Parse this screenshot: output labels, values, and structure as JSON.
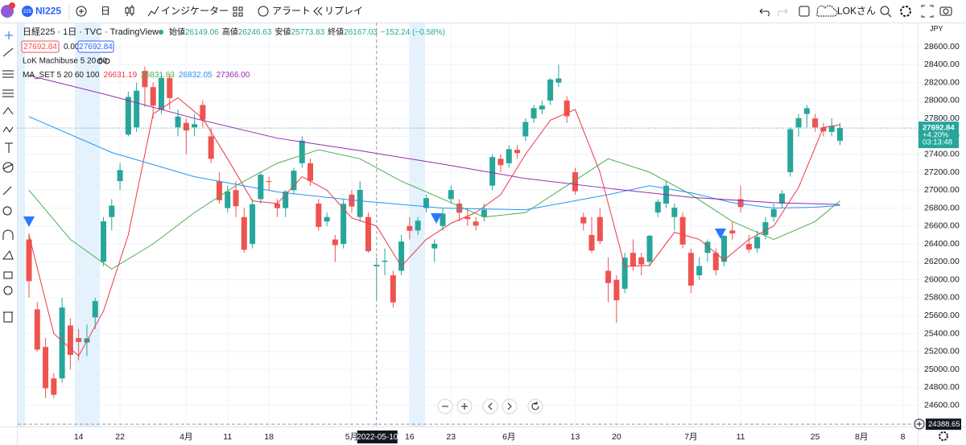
{
  "toolbar": {
    "symbol": "NI225",
    "logo_badge": "225",
    "interval": "日",
    "indicators": "インジケーター",
    "alert": "アラート",
    "replay": "リプレイ",
    "user": "LOKさん"
  },
  "legend": {
    "title": "日経225 · 1日 · TVC · TradingView",
    "open_label": "始値",
    "open": "26149.06",
    "high_label": "高値",
    "high": "26246.63",
    "low_label": "安値",
    "low": "25773.83",
    "close_label": "終値",
    "close": "26167.03",
    "change": "−152.24 (−0.58%)",
    "tag1": "27692.84",
    "tag2": "0.00",
    "tag3": "27692.84",
    "lok": "LoK Machibuse 5 20 60",
    "ma_set": "MA_SET 5 20 60 100",
    "ma_values": [
      "26631.19",
      "26831.63",
      "26832.05",
      "27366.00"
    ]
  },
  "chart_data": {
    "type": "candlestick",
    "currency": "JPY",
    "up_color": "#26a69a",
    "down_color": "#ef5350",
    "ylim": [
      24390,
      28870
    ],
    "yticks": [
      {
        "value": 24600,
        "label": "24600.00"
      },
      {
        "value": 24800,
        "label": "24800.00"
      },
      {
        "value": 25000,
        "label": "25000.00"
      },
      {
        "value": 25200,
        "label": "25200.00"
      },
      {
        "value": 25400,
        "label": "25400.00"
      },
      {
        "value": 25600,
        "label": "25600.00"
      },
      {
        "value": 25800,
        "label": "25800.00"
      },
      {
        "value": 26000,
        "label": "26000.00"
      },
      {
        "value": 26200,
        "label": "26200.00"
      },
      {
        "value": 26400,
        "label": "26400.00"
      },
      {
        "value": 26600,
        "label": "26600.00"
      },
      {
        "value": 26800,
        "label": "26800.00"
      },
      {
        "value": 27000,
        "label": "27000.00"
      },
      {
        "value": 27200,
        "label": "27200.00"
      },
      {
        "value": 27400,
        "label": "27400.00"
      },
      {
        "value": 27600,
        "label": "27600.00"
      },
      {
        "value": 27800,
        "label": "27800.00"
      },
      {
        "value": 28000,
        "label": "28000.00"
      },
      {
        "value": 28200,
        "label": "28200.00"
      },
      {
        "value": 28400,
        "label": "28400.00"
      },
      {
        "value": 28600,
        "label": "28600.00"
      }
    ],
    "xticks": [
      {
        "value": 6,
        "label": "14"
      },
      {
        "value": 11,
        "label": "22"
      },
      {
        "value": 19,
        "label": "4月"
      },
      {
        "value": 24,
        "label": "11"
      },
      {
        "value": 29,
        "label": "18"
      },
      {
        "value": 39,
        "label": "5月"
      },
      {
        "value": 46,
        "label": "16"
      },
      {
        "value": 51,
        "label": "23"
      },
      {
        "value": 58,
        "label": "6月"
      },
      {
        "value": 66,
        "label": "13"
      },
      {
        "value": 71,
        "label": "20"
      },
      {
        "value": 80,
        "label": "7月"
      },
      {
        "value": 86,
        "label": "11"
      },
      {
        "value": 95,
        "label": "25"
      },
      {
        "value": 100.6,
        "label": "8月"
      },
      {
        "value": 105.6,
        "label": "8"
      }
    ],
    "candles": [
      [
        26450,
        26520,
        25800,
        25985
      ],
      [
        25670,
        25750,
        25200,
        25221
      ],
      [
        25250,
        25350,
        24680,
        24790
      ],
      [
        24900,
        24960,
        24680,
        24717
      ],
      [
        24900,
        25800,
        24850,
        25690
      ],
      [
        25490,
        25570,
        25000,
        25162
      ],
      [
        25350,
        25450,
        25100,
        25307
      ],
      [
        25300,
        25500,
        25150,
        25346
      ],
      [
        25580,
        25800,
        25450,
        25762
      ],
      [
        26200,
        26700,
        26150,
        26652
      ],
      [
        26700,
        26900,
        26550,
        26827
      ],
      [
        27100,
        27300,
        27000,
        27224
      ],
      [
        27620,
        28100,
        27600,
        28040
      ],
      [
        27700,
        28200,
        27650,
        28110
      ],
      [
        28330,
        28380,
        27930,
        28149
      ],
      [
        28150,
        28200,
        27800,
        27943
      ],
      [
        27900,
        28300,
        27850,
        28252
      ],
      [
        28250,
        28300,
        27900,
        28027
      ],
      [
        27700,
        27900,
        27600,
        27821
      ],
      [
        27750,
        27800,
        27400,
        27665
      ],
      [
        27700,
        27850,
        27600,
        27736
      ],
      [
        27950,
        28000,
        27700,
        27787
      ],
      [
        27600,
        27700,
        27300,
        27350
      ],
      [
        27100,
        27200,
        26850,
        26888
      ],
      [
        26800,
        27050,
        26750,
        26985
      ],
      [
        27000,
        27100,
        26700,
        26821
      ],
      [
        26700,
        26800,
        26300,
        26334
      ],
      [
        26400,
        26900,
        26350,
        26843
      ],
      [
        26900,
        27200,
        26850,
        27172
      ],
      [
        27100,
        27150,
        27000,
        27093
      ],
      [
        26850,
        26900,
        26700,
        26799
      ],
      [
        26800,
        27000,
        26700,
        26985
      ],
      [
        27000,
        27250,
        26950,
        27217
      ],
      [
        27300,
        27600,
        27250,
        27553
      ],
      [
        27300,
        27350,
        27050,
        27105
      ],
      [
        26850,
        26900,
        26550,
        26590
      ],
      [
        26650,
        26750,
        26600,
        26700
      ],
      [
        26450,
        26500,
        26200,
        26386
      ],
      [
        26400,
        26900,
        26350,
        26847
      ],
      [
        26950,
        27000,
        26750,
        26818
      ],
      [
        26700,
        27100,
        26650,
        27003
      ],
      [
        26700,
        26750,
        26300,
        26319
      ],
      [
        26149.06,
        26246.63,
        25773.83,
        26167.03
      ],
      [
        26200,
        26350,
        26050,
        26213
      ],
      [
        26050,
        26100,
        25690,
        25748
      ],
      [
        26100,
        26500,
        26050,
        26427
      ],
      [
        26600,
        26700,
        26450,
        26547
      ],
      [
        26550,
        26700,
        26500,
        26659
      ],
      [
        26800,
        26950,
        26750,
        26911
      ],
      [
        26350,
        26450,
        26200,
        26402
      ],
      [
        26600,
        26800,
        26550,
        26739
      ],
      [
        26900,
        27050,
        26850,
        27001
      ],
      [
        26850,
        26900,
        26650,
        26748
      ],
      [
        26700,
        26800,
        26600,
        26677
      ],
      [
        26650,
        26700,
        26550,
        26604
      ],
      [
        26700,
        26850,
        26650,
        26781
      ],
      [
        27050,
        27400,
        27000,
        27369
      ],
      [
        27350,
        27400,
        27200,
        27279
      ],
      [
        27300,
        27500,
        27250,
        27457
      ],
      [
        27450,
        27500,
        27350,
        27413
      ],
      [
        27600,
        27800,
        27550,
        27761
      ],
      [
        27800,
        27950,
        27750,
        27915
      ],
      [
        27900,
        28000,
        27850,
        27943
      ],
      [
        28000,
        28250,
        27950,
        28234
      ],
      [
        28200,
        28400,
        28150,
        28246
      ],
      [
        28000,
        28050,
        27750,
        27824
      ],
      [
        27200,
        27250,
        26950,
        26987
      ],
      [
        26700,
        26750,
        26550,
        26629
      ],
      [
        26500,
        26700,
        26300,
        26326
      ],
      [
        26700,
        26800,
        26400,
        26431
      ],
      [
        26100,
        26250,
        25750,
        25963
      ],
      [
        26000,
        26050,
        25520,
        25771
      ],
      [
        25900,
        26300,
        25850,
        26246
      ],
      [
        26300,
        26450,
        26100,
        26149
      ],
      [
        26250,
        26300,
        26050,
        26171
      ],
      [
        26200,
        26500,
        26150,
        26491
      ],
      [
        26750,
        26900,
        26700,
        26871
      ],
      [
        26850,
        27100,
        26800,
        27049
      ],
      [
        26700,
        26850,
        26550,
        26804
      ],
      [
        26700,
        26750,
        26350,
        26393
      ],
      [
        26300,
        26350,
        25850,
        25935
      ],
      [
        26050,
        26250,
        26000,
        26153
      ],
      [
        26300,
        26450,
        26200,
        26423
      ],
      [
        26300,
        26350,
        26050,
        26107
      ],
      [
        26200,
        26500,
        26150,
        26490
      ],
      [
        26550,
        26650,
        26450,
        26517
      ],
      [
        26900,
        27050,
        26750,
        26812
      ],
      [
        26400,
        26500,
        26300,
        26336
      ],
      [
        26350,
        26550,
        26300,
        26478
      ],
      [
        26500,
        26700,
        26450,
        26643
      ],
      [
        26700,
        26850,
        26650,
        26788
      ],
      [
        26850,
        27000,
        26800,
        26961
      ],
      [
        27200,
        27700,
        27150,
        27680
      ],
      [
        27700,
        27850,
        27600,
        27803
      ],
      [
        27850,
        27950,
        27700,
        27914
      ],
      [
        27800,
        27850,
        27650,
        27699
      ],
      [
        27700,
        27750,
        27600,
        27655
      ],
      [
        27650,
        27800,
        27600,
        27715
      ],
      [
        27550,
        27750,
        27500,
        27692.84
      ]
    ],
    "ma_lines": [
      {
        "color": "#f23645",
        "x": [
          0,
          3,
          6,
          9,
          12,
          15,
          18,
          21,
          24,
          27,
          30,
          33,
          36,
          39,
          42,
          45,
          48,
          51,
          54,
          57,
          60,
          63,
          66,
          69,
          72,
          75,
          78,
          81,
          84,
          87,
          90,
          93,
          96,
          98
        ],
        "values": [
          26500,
          25400,
          25150,
          25650,
          26500,
          27850,
          28030,
          27800,
          27350,
          26880,
          26850,
          27150,
          27000,
          26690,
          26600,
          26150,
          26450,
          26630,
          26750,
          26950,
          27400,
          27780,
          27900,
          27200,
          26150,
          26160,
          26530,
          26450,
          26220,
          26450,
          26600,
          27030,
          27700,
          27730
        ]
      },
      {
        "color": "#4caf50",
        "x": [
          0,
          5,
          10,
          15,
          20,
          25,
          30,
          35,
          40,
          45,
          50,
          55,
          60,
          65,
          70,
          75,
          80,
          85,
          90,
          95,
          98
        ],
        "values": [
          27000,
          26450,
          26120,
          26400,
          26750,
          27050,
          27300,
          27450,
          27350,
          27100,
          26900,
          26700,
          26750,
          27050,
          27350,
          27200,
          26950,
          26650,
          26450,
          26650,
          26880
        ]
      },
      {
        "color": "#2196f3",
        "x": [
          0,
          10,
          20,
          30,
          40,
          50,
          60,
          70,
          75,
          80,
          85,
          90,
          95,
          98
        ],
        "values": [
          27820,
          27420,
          27150,
          26980,
          26880,
          26800,
          26780,
          26950,
          27050,
          26970,
          26860,
          26800,
          26810,
          26830
        ]
      },
      {
        "color": "#9c27b0",
        "x": [
          0,
          10,
          20,
          30,
          40,
          50,
          60,
          70,
          80,
          90,
          98
        ],
        "values": [
          28280,
          28050,
          27800,
          27580,
          27440,
          27290,
          27130,
          27020,
          26920,
          26860,
          26840
        ]
      }
    ],
    "last_price": {
      "price": 27692.84,
      "change": "+4.20%",
      "countdown": "03:13:48"
    },
    "crosshair": {
      "index": 42,
      "date_label": "2022-05-10",
      "price": 24388.65
    }
  }
}
